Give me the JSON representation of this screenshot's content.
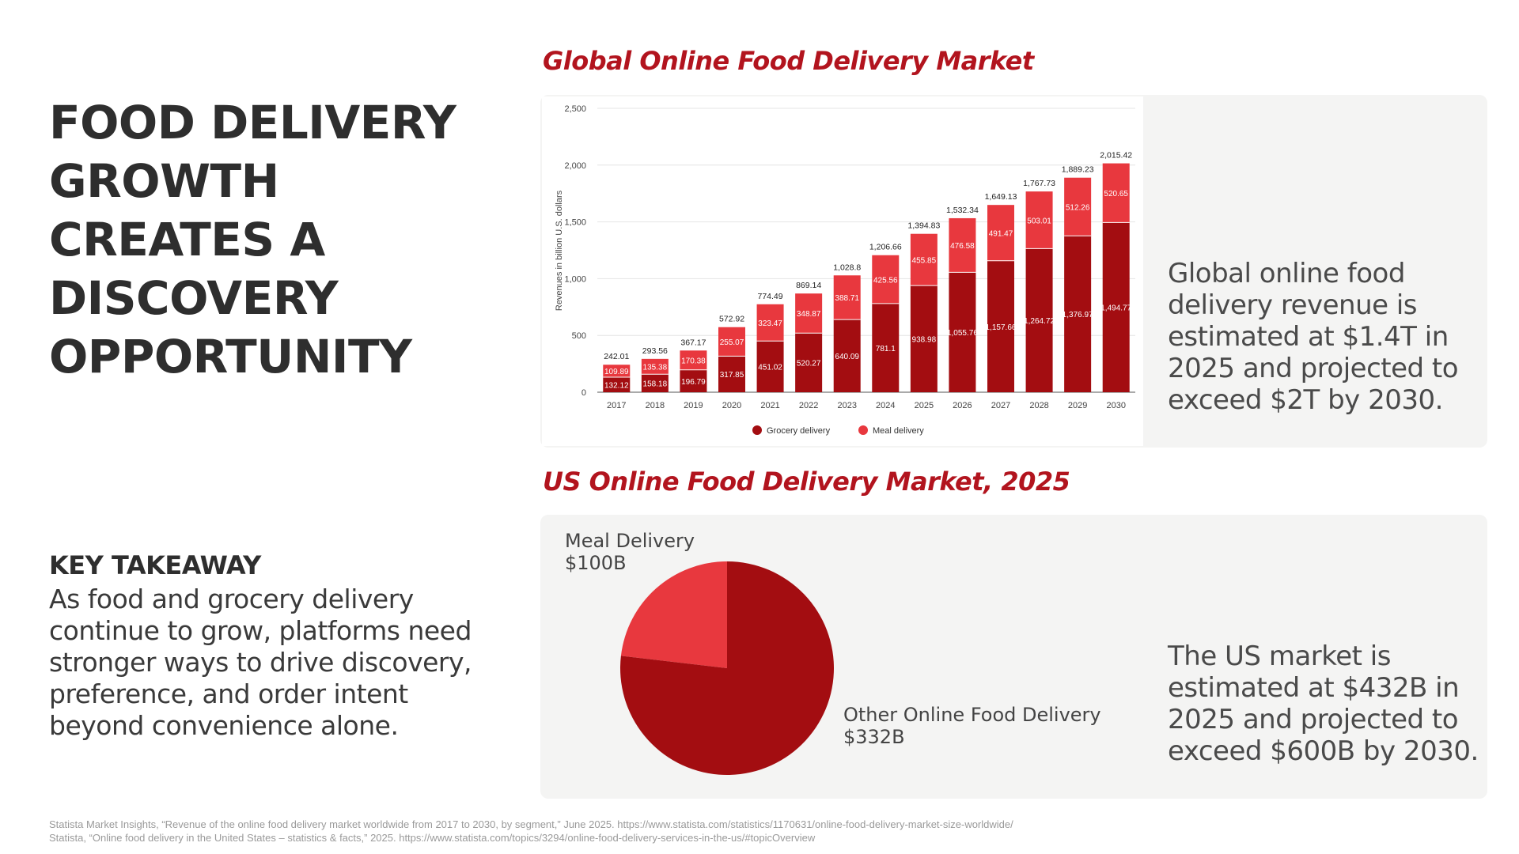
{
  "headline": "FOOD DELIVERY GROWTH CREATES A DISCOVERY OPPORTUNITY",
  "takeaway": {
    "title": "KEY TAKEAWAY",
    "body": "As food and grocery delivery continue to grow, platforms need stronger ways to drive discovery, preference, and order intent beyond convenience alone."
  },
  "global_section": {
    "title": "Global Online Food Delivery Market",
    "description": "Global online food delivery revenue is estimated at $1.4T in 2025 and projected to exceed $2T by 2030."
  },
  "us_section": {
    "title": "US Online Food Delivery Market, 2025",
    "description": "The US market is estimated at $432B in 2025 and projected to exceed $600B by 2030.",
    "meal_label": "Meal Delivery",
    "meal_value": "$100B",
    "other_label": "Other Online Food Delivery",
    "other_value": "$332B"
  },
  "colors": {
    "accent": "#b2141e",
    "grocery": "#a30d11",
    "meal": "#e8383e",
    "panel": "#f4f4f3"
  },
  "sources": [
    "Statista Market Insights, “Revenue of the online food delivery market worldwide from 2017 to 2030, by segment,” June 2025. https://www.statista.com/statistics/1170631/online-food-delivery-market-size-worldwide/",
    "Statista, “Online food delivery in the United States – statistics & facts,” 2025. https://www.statista.com/topics/3294/online-food-delivery-services-in-the-us/#topicOverview"
  ],
  "chart_data": [
    {
      "type": "bar",
      "stacked": true,
      "title": "Global Online Food Delivery Market",
      "ylabel": "Revenues in billion U.S. dollars",
      "ylim": [
        0,
        2500
      ],
      "yticks": [
        "0",
        "500",
        "1,000",
        "1,500",
        "2,000",
        "2,500"
      ],
      "grid": true,
      "legend_position": "bottom",
      "categories": [
        "2017",
        "2018",
        "2019",
        "2020",
        "2021",
        "2022",
        "2023",
        "2024",
        "2025",
        "2026",
        "2027",
        "2028",
        "2029",
        "2030"
      ],
      "series": [
        {
          "name": "Grocery delivery",
          "color": "#a30d11",
          "values": [
            132.12,
            158.18,
            196.79,
            317.85,
            451.02,
            520.27,
            640.09,
            781.1,
            938.98,
            1055.76,
            1157.66,
            1264.72,
            1376.97,
            1494.77
          ],
          "labels": [
            "132.12",
            "158.18",
            "196.79",
            "317.85",
            "451.02",
            "520.27",
            "640.09",
            "781.1",
            "938.98",
            "1,055.76",
            "1,157.66",
            "1,264.72",
            "1,376.97",
            "1,494.77"
          ]
        },
        {
          "name": "Meal delivery",
          "color": "#e8383e",
          "values": [
            109.89,
            135.38,
            170.38,
            255.07,
            323.47,
            348.87,
            388.71,
            425.56,
            455.85,
            476.58,
            491.47,
            503.01,
            512.26,
            520.65
          ],
          "labels": [
            "109.89",
            "135.38",
            "170.38",
            "255.07",
            "323.47",
            "348.87",
            "388.71",
            "425.56",
            "455.85",
            "476.58",
            "491.47",
            "503.01",
            "512.26",
            "520.65"
          ]
        }
      ],
      "totals": [
        "242.01",
        "293.56",
        "367.17",
        "572.92",
        "774.49",
        "869.14",
        "1,028.8",
        "1,206.66",
        "1,394.83",
        "1,532.34",
        "1,649.13",
        "1,767.73",
        "1,889.23",
        "2,015.42"
      ]
    },
    {
      "type": "pie",
      "title": "US Online Food Delivery Market, 2025",
      "slices": [
        {
          "name": "Meal Delivery",
          "value": 100,
          "label": "$100B",
          "color": "#e8383e"
        },
        {
          "name": "Other Online Food Delivery",
          "value": 332,
          "label": "$332B",
          "color": "#a30d11"
        }
      ]
    }
  ]
}
